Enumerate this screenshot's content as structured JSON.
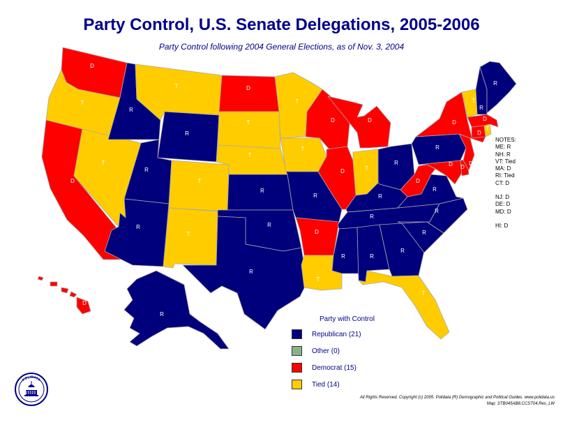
{
  "title": "Party Control, U.S. Senate Delegations, 2005-2006",
  "subtitle": "Party Control following 2004 General Elections, as of Nov. 3, 2004",
  "colors": {
    "republican": "#00007C",
    "democrat": "#FF0000",
    "tied": "#FFCC00",
    "other": "#88B38A",
    "border": "#aaaaaa",
    "title": "#00008B"
  },
  "states": {
    "WA": "D",
    "OR": "T",
    "CA": "D",
    "NV": "T",
    "ID": "R",
    "MT": "T",
    "WY": "R",
    "UT": "R",
    "AZ": "R",
    "CO": "T",
    "NM": "T",
    "ND": "D",
    "SD": "T",
    "NE": "T",
    "KS": "R",
    "OK": "R",
    "TX": "R",
    "MN": "T",
    "IA": "T",
    "MO": "R",
    "AR": "D",
    "LA": "T",
    "WI": "D",
    "IL": "D",
    "MS": "R",
    "MI": "D",
    "IN": "T",
    "KY": "R",
    "TN": "R",
    "AL": "R",
    "OH": "R",
    "GA": "R",
    "FL": "T",
    "SC": "R",
    "NC": "R",
    "VA": "R",
    "WV": "D",
    "PA": "R",
    "NY": "D",
    "ME": "R",
    "VT": "T",
    "NH": "R",
    "MA": "D",
    "RI": "T",
    "CT": "D",
    "NJ": "D",
    "DE": "D",
    "MD": "D",
    "AK": "R",
    "HI": "D"
  },
  "notes": {
    "heading": "NOTES:",
    "lines": [
      "ME: R",
      "NH: R",
      "VT: Tied",
      "MA: D",
      "RI: Tied",
      "CT: D"
    ],
    "lines2": [
      "NJ: D",
      "DE: D",
      "MD: D"
    ],
    "lines3": [
      "HI: D"
    ]
  },
  "legend": {
    "title": "Party with Control",
    "items": [
      {
        "label": "Republican (21)",
        "party": "republican"
      },
      {
        "label": "Other (0)",
        "party": "other"
      },
      {
        "label": "Democrat (15)",
        "party": "democrat"
      },
      {
        "label": "Tied (14)",
        "party": "tied"
      }
    ]
  },
  "seal_text": "POLIDATA",
  "footer": {
    "line1": "All Rights Reserved. Copyright (c) 2005. Polidata (R) Demographic and Political Guides. www.polidata.us",
    "line2": "Map: STB045AB8.CCST04.Res_LW"
  }
}
